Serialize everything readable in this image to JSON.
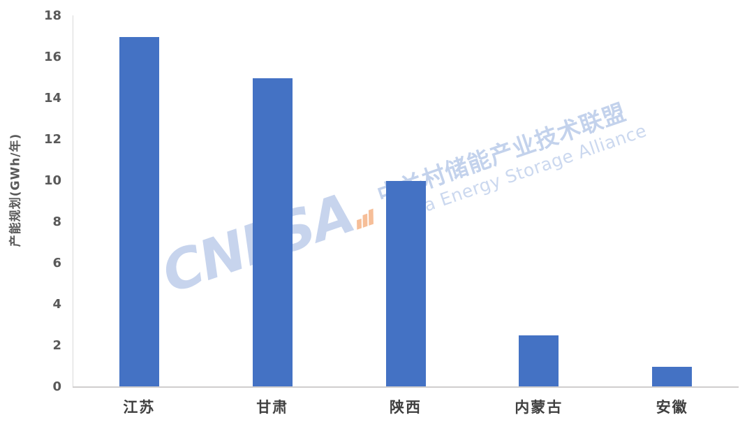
{
  "chart_data": {
    "type": "bar",
    "title": "",
    "categories": [
      "江苏",
      "甘肃",
      "陕西",
      "内蒙古",
      "安徽"
    ],
    "values": [
      17,
      15,
      10,
      2.5,
      1
    ],
    "xlabel": "",
    "ylabel": "产能规划(GWh/年)",
    "ylim": [
      0,
      18
    ],
    "yticks": [
      0,
      2,
      4,
      6,
      8,
      10,
      12,
      14,
      16,
      18
    ],
    "grid": false,
    "legend": "none",
    "bar_color": "#4472C4",
    "axis_line_color": "#D9D9D9",
    "tick_label_color": "#595959",
    "category_label_color": "#3F3F3F"
  },
  "watermark": {
    "wordmark": "CNESA",
    "cn_text": "中关村储能产业技术联盟",
    "en_text": "China Energy Storage Alliance",
    "text_color": "#4472C4",
    "icon": "signal-bars-icon",
    "icon_color": "#ED7D31"
  }
}
